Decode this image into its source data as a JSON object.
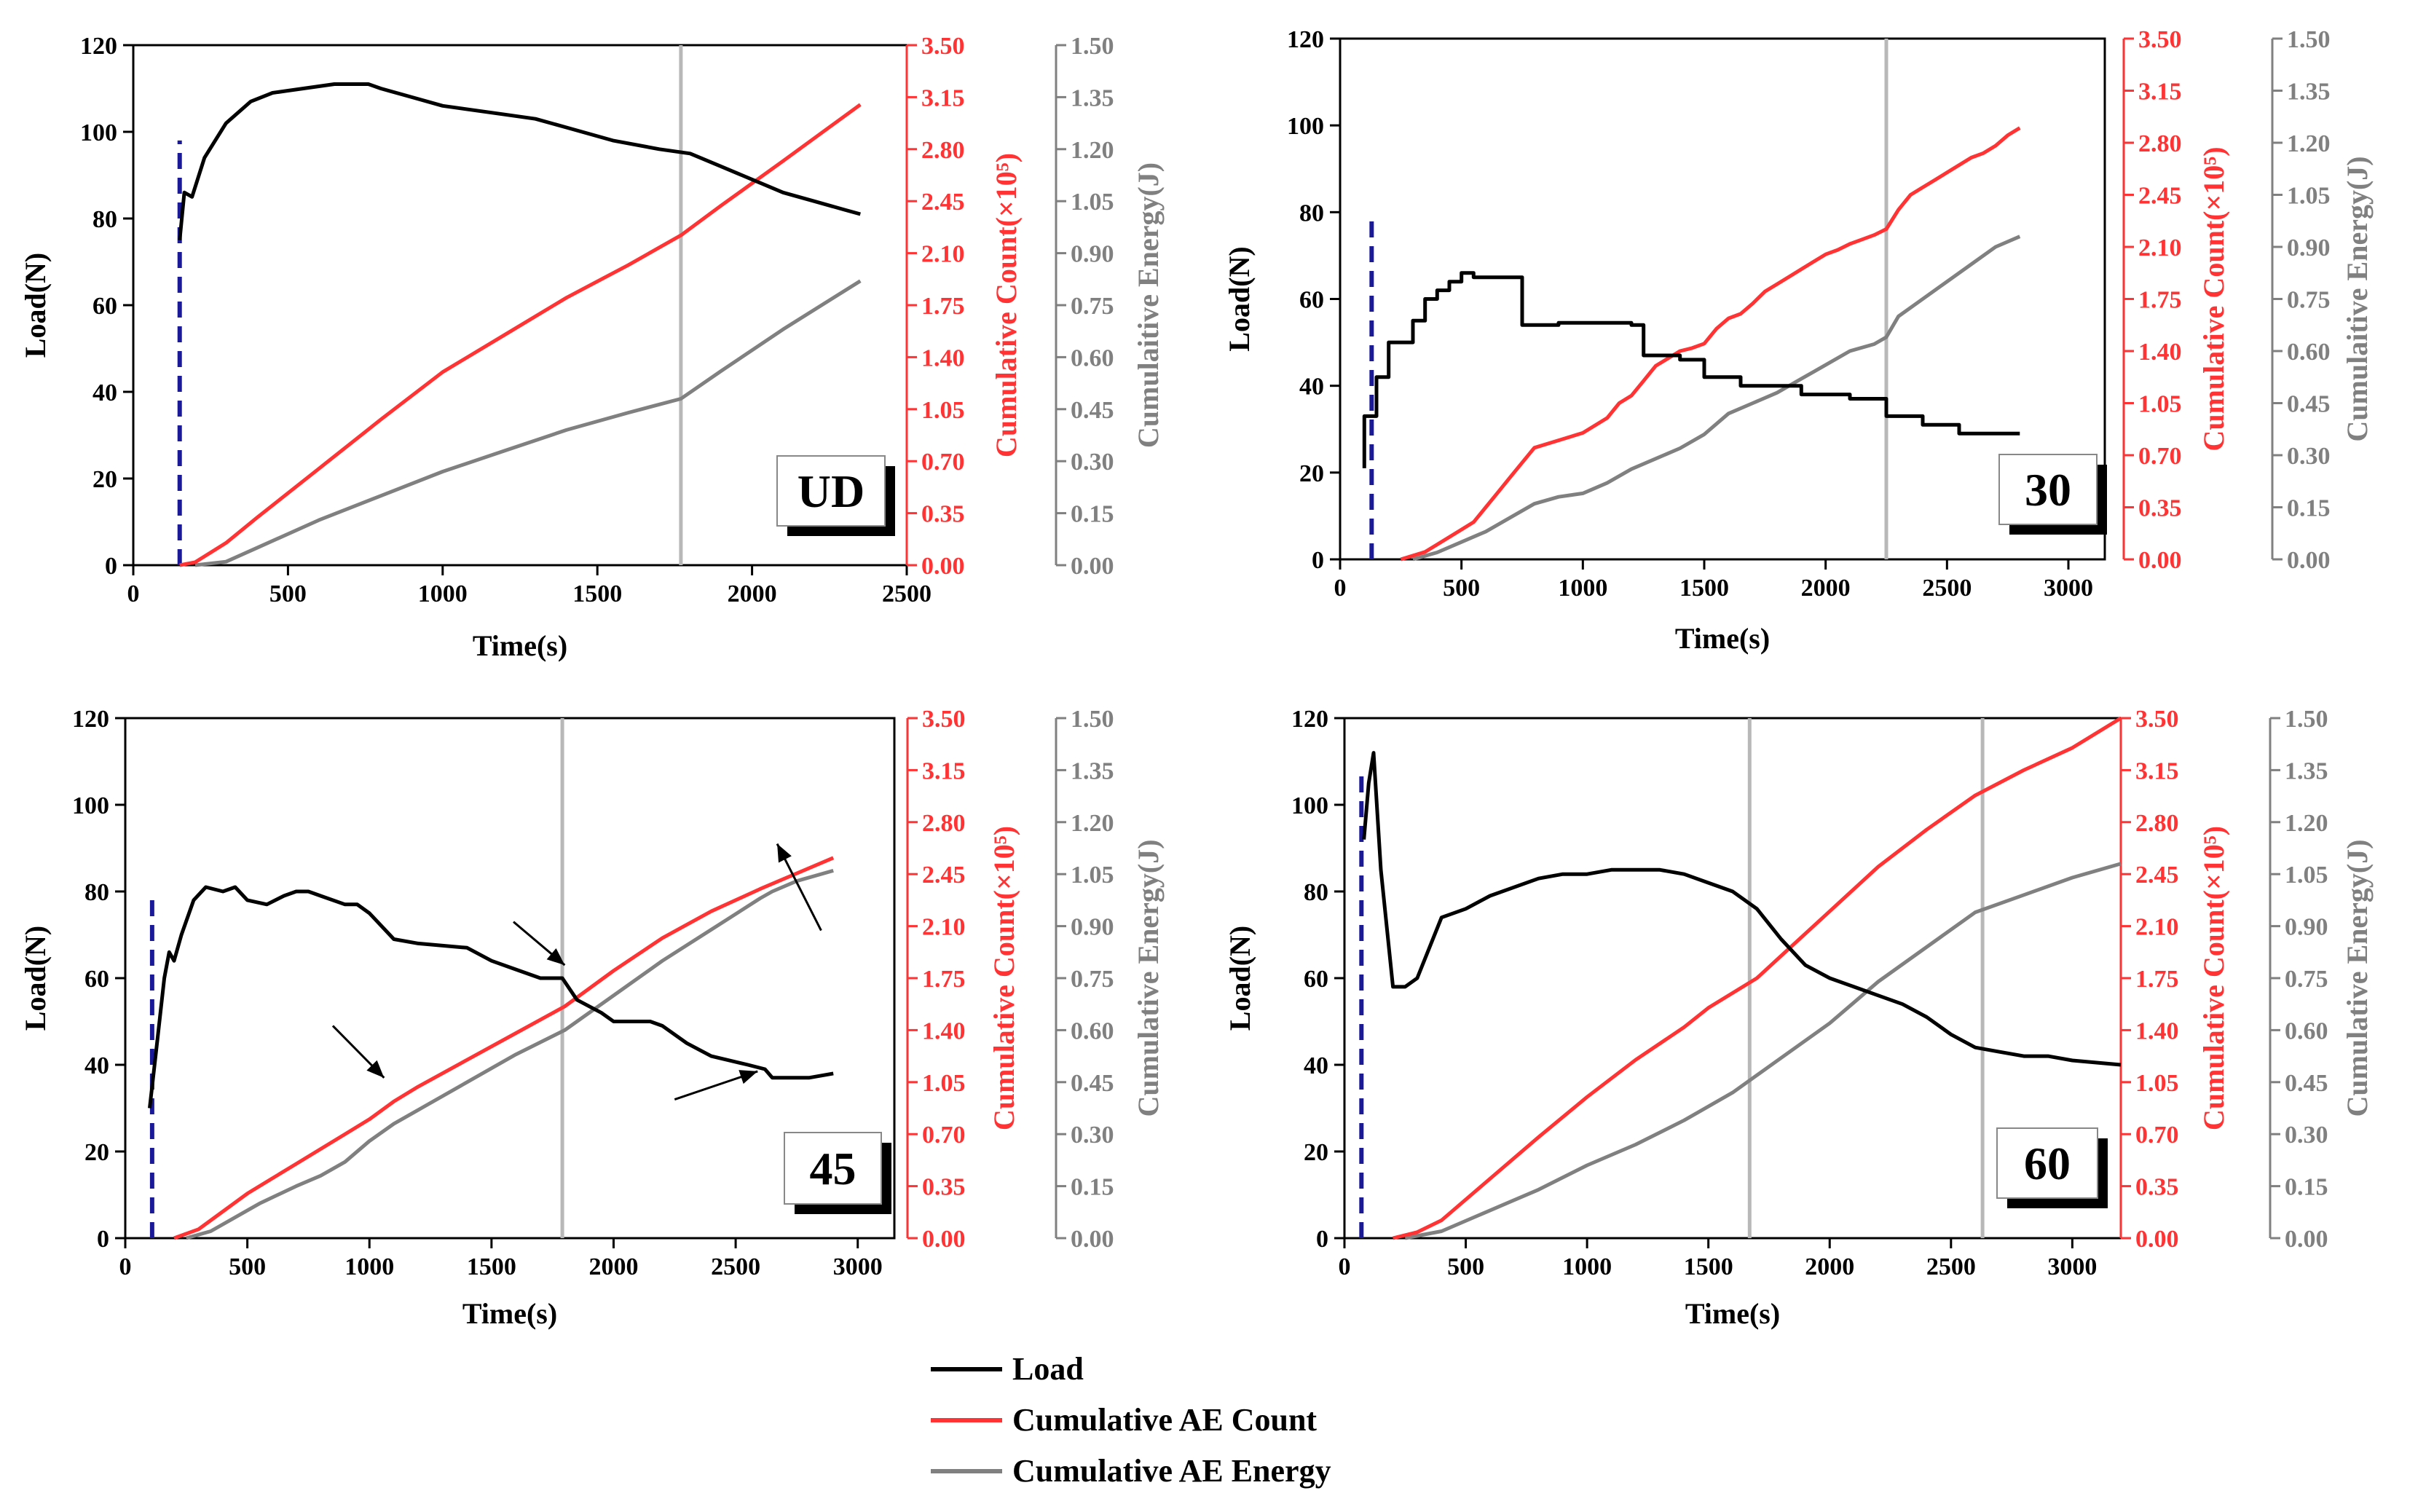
{
  "chart_data": [
    {
      "type": "line",
      "panel_label": "UD",
      "xlabel": "Time(s)",
      "ylabel_left": "Load(N)",
      "ylabel_right1": "Cumulative Count(×10⁵)",
      "ylabel_right2": "Cumulaitive Energy(J)",
      "xlim": [
        0,
        2500
      ],
      "xticks": [
        "0",
        "500",
        "1000",
        "1500",
        "2000",
        "2500"
      ],
      "ylim_left": [
        0,
        120
      ],
      "yticks_left": [
        "0",
        "20",
        "40",
        "60",
        "80",
        "100",
        "120"
      ],
      "ylim_right1": [
        0,
        3.5
      ],
      "yticks_right1": [
        "0.00",
        "0.35",
        "0.70",
        "1.05",
        "1.40",
        "1.75",
        "2.10",
        "2.45",
        "2.80",
        "3.15",
        "3.50"
      ],
      "ylim_right2": [
        0,
        1.5
      ],
      "yticks_right2": [
        "0.00",
        "0.15",
        "0.30",
        "0.45",
        "0.60",
        "0.75",
        "0.90",
        "1.05",
        "1.20",
        "1.35",
        "1.50"
      ],
      "dashed_line_x": 150,
      "dashed_line_top": 98,
      "vertical_lines_x": [
        1770
      ],
      "series": [
        {
          "name": "Load",
          "axis": "left",
          "color": "#000000",
          "x": [
            150,
            165,
            190,
            230,
            300,
            380,
            450,
            550,
            650,
            700,
            760,
            800,
            900,
            1000,
            1200,
            1300,
            1400,
            1550,
            1700,
            1800,
            1900,
            2000,
            2100,
            2200,
            2300,
            2350
          ],
          "y": [
            75,
            86,
            85,
            94,
            102,
            107,
            109,
            110,
            111,
            111,
            111,
            110,
            108,
            106,
            104,
            103,
            101,
            98,
            96,
            95,
            92,
            89,
            86,
            84,
            82,
            81
          ]
        },
        {
          "name": "Cumulative AE Count",
          "axis": "right1",
          "color": "#ff3333",
          "x": [
            150,
            200,
            300,
            400,
            600,
            800,
            1000,
            1200,
            1400,
            1600,
            1770,
            1900,
            2100,
            2350
          ],
          "y": [
            0,
            0.02,
            0.15,
            0.32,
            0.65,
            0.98,
            1.3,
            1.55,
            1.8,
            2.02,
            2.22,
            2.42,
            2.72,
            3.1
          ]
        },
        {
          "name": "Cumulative AE Energy",
          "axis": "right2",
          "color": "#808080",
          "x": [
            200,
            300,
            400,
            600,
            800,
            1000,
            1200,
            1400,
            1600,
            1770,
            1900,
            2100,
            2350
          ],
          "y": [
            0,
            0.01,
            0.05,
            0.13,
            0.2,
            0.27,
            0.33,
            0.39,
            0.44,
            0.48,
            0.56,
            0.68,
            0.82
          ]
        }
      ]
    },
    {
      "type": "line",
      "panel_label": "30",
      "xlabel": "Time(s)",
      "ylabel_left": "Load(N)",
      "ylabel_right1": "Cumulative Count(×10⁵)",
      "ylabel_right2": "Cumulaitive Energy(J)",
      "xlim": [
        0,
        3150
      ],
      "xticks": [
        "0",
        "500",
        "1000",
        "1500",
        "2000",
        "2500",
        "3000"
      ],
      "ylim_left": [
        0,
        120
      ],
      "yticks_left": [
        "0",
        "20",
        "40",
        "60",
        "80",
        "100",
        "120"
      ],
      "ylim_right1": [
        0,
        3.5
      ],
      "yticks_right1": [
        "0.00",
        "0.35",
        "0.70",
        "1.05",
        "1.40",
        "1.75",
        "2.10",
        "2.45",
        "2.80",
        "3.15",
        "3.50"
      ],
      "ylim_right2": [
        0,
        1.5
      ],
      "yticks_right2": [
        "0.00",
        "0.15",
        "0.30",
        "0.45",
        "0.60",
        "0.75",
        "0.90",
        "1.05",
        "1.20",
        "1.35",
        "1.50"
      ],
      "dashed_line_x": 130,
      "dashed_line_top": 78,
      "vertical_lines_x": [
        2250
      ],
      "series": [
        {
          "name": "Load",
          "axis": "left",
          "color": "#000000",
          "x": [
            100,
            100,
            150,
            150,
            200,
            200,
            300,
            300,
            350,
            350,
            400,
            400,
            450,
            450,
            500,
            500,
            550,
            550,
            650,
            650,
            750,
            750,
            900,
            900,
            1200,
            1200,
            1250,
            1250,
            1400,
            1400,
            1500,
            1500,
            1650,
            1650,
            1900,
            1900,
            2100,
            2100,
            2250,
            2250,
            2400,
            2400,
            2550,
            2550,
            2800
          ],
          "y": [
            21,
            33,
            33,
            42,
            42,
            50,
            50,
            55,
            55,
            60,
            60,
            62,
            62,
            64,
            64,
            66,
            66,
            65,
            65,
            65,
            65,
            54,
            54,
            54.5,
            54.5,
            54,
            54,
            47,
            47,
            46,
            46,
            42,
            42,
            40,
            40,
            38,
            38,
            37,
            37,
            33,
            33,
            31,
            31,
            29,
            29
          ]
        },
        {
          "name": "Cumulative AE Count",
          "axis": "right1",
          "color": "#ff3333",
          "x": [
            250,
            350,
            400,
            450,
            500,
            550,
            600,
            650,
            700,
            750,
            800,
            900,
            1000,
            1100,
            1150,
            1200,
            1250,
            1300,
            1350,
            1400,
            1450,
            1500,
            1550,
            1600,
            1650,
            1700,
            1750,
            1800,
            1850,
            1900,
            1950,
            2000,
            2050,
            2100,
            2150,
            2200,
            2250,
            2300,
            2350,
            2400,
            2450,
            2500,
            2550,
            2600,
            2650,
            2700,
            2750,
            2800
          ],
          "y": [
            0,
            0.05,
            0.1,
            0.15,
            0.2,
            0.25,
            0.35,
            0.45,
            0.55,
            0.65,
            0.75,
            0.8,
            0.85,
            0.95,
            1.05,
            1.1,
            1.2,
            1.3,
            1.35,
            1.4,
            1.42,
            1.45,
            1.55,
            1.62,
            1.65,
            1.72,
            1.8,
            1.85,
            1.9,
            1.95,
            2.0,
            2.05,
            2.08,
            2.12,
            2.15,
            2.18,
            2.22,
            2.35,
            2.45,
            2.5,
            2.55,
            2.6,
            2.65,
            2.7,
            2.73,
            2.78,
            2.85,
            2.9
          ]
        },
        {
          "name": "Cumulative AE Energy",
          "axis": "right2",
          "color": "#808080",
          "x": [
            300,
            400,
            500,
            600,
            700,
            800,
            900,
            1000,
            1100,
            1200,
            1300,
            1400,
            1500,
            1600,
            1700,
            1800,
            1900,
            2000,
            2100,
            2200,
            2250,
            2300,
            2400,
            2500,
            2600,
            2700,
            2800
          ],
          "y": [
            0,
            0.02,
            0.05,
            0.08,
            0.12,
            0.16,
            0.18,
            0.19,
            0.22,
            0.26,
            0.29,
            0.32,
            0.36,
            0.42,
            0.45,
            0.48,
            0.52,
            0.56,
            0.6,
            0.62,
            0.64,
            0.7,
            0.75,
            0.8,
            0.85,
            0.9,
            0.93
          ]
        }
      ]
    },
    {
      "type": "line",
      "panel_label": "45",
      "xlabel": "Time(s)",
      "ylabel_left": "Load(N)",
      "ylabel_right1": "Cumulative Count(×10⁵)",
      "ylabel_right2": "Cumulative Energy(J)",
      "xlim": [
        0,
        3150
      ],
      "xticks": [
        "0",
        "500",
        "1000",
        "1500",
        "2000",
        "2500",
        "3000"
      ],
      "ylim_left": [
        0,
        120
      ],
      "yticks_left": [
        "0",
        "20",
        "40",
        "60",
        "80",
        "100",
        "120"
      ],
      "ylim_right1": [
        0,
        3.5
      ],
      "yticks_right1": [
        "0.00",
        "0.35",
        "0.70",
        "1.05",
        "1.40",
        "1.75",
        "2.10",
        "2.45",
        "2.80",
        "3.15",
        "3.50"
      ],
      "ylim_right2": [
        0,
        1.5
      ],
      "yticks_right2": [
        "0.00",
        "0.15",
        "0.30",
        "0.45",
        "0.60",
        "0.75",
        "0.90",
        "1.05",
        "1.20",
        "1.35",
        "1.50"
      ],
      "dashed_line_x": 110,
      "dashed_line_top": 78,
      "vertical_lines_x": [
        1790
      ],
      "series": [
        {
          "name": "Load",
          "axis": "left",
          "color": "#000000",
          "x": [
            100,
            130,
            160,
            180,
            200,
            230,
            280,
            330,
            400,
            450,
            500,
            580,
            650,
            700,
            750,
            800,
            900,
            950,
            1000,
            1100,
            1200,
            1400,
            1500,
            1600,
            1700,
            1790,
            1850,
            1950,
            2000,
            2150,
            2200,
            2300,
            2400,
            2550,
            2620,
            2650,
            2800,
            2900
          ],
          "y": [
            30,
            45,
            60,
            66,
            64,
            70,
            78,
            81,
            80,
            81,
            78,
            77,
            79,
            80,
            80,
            79,
            77,
            77,
            75,
            69,
            68,
            67,
            64,
            62,
            60,
            60,
            55,
            52,
            50,
            50,
            49,
            45,
            42,
            40,
            39,
            37,
            37,
            38
          ]
        },
        {
          "name": "Cumulative AE Count",
          "axis": "right1",
          "color": "#ff3333",
          "x": [
            200,
            300,
            400,
            500,
            600,
            700,
            800,
            900,
            1000,
            1100,
            1200,
            1400,
            1600,
            1800,
            2000,
            2200,
            2400,
            2600,
            2900
          ],
          "y": [
            0,
            0.06,
            0.18,
            0.3,
            0.4,
            0.5,
            0.6,
            0.7,
            0.8,
            0.92,
            1.02,
            1.2,
            1.38,
            1.56,
            1.8,
            2.02,
            2.2,
            2.35,
            2.56
          ]
        },
        {
          "name": "Cumulative AE Energy",
          "axis": "right2",
          "color": "#808080",
          "x": [
            250,
            350,
            450,
            550,
            700,
            800,
            900,
            1000,
            1100,
            1200,
            1400,
            1600,
            1800,
            2000,
            2200,
            2400,
            2600,
            2650,
            2750,
            2900
          ],
          "y": [
            0,
            0.02,
            0.06,
            0.1,
            0.15,
            0.18,
            0.22,
            0.28,
            0.33,
            0.37,
            0.45,
            0.53,
            0.6,
            0.7,
            0.8,
            0.89,
            0.98,
            1.0,
            1.03,
            1.06
          ]
        }
      ]
    },
    {
      "type": "line",
      "panel_label": "60",
      "xlabel": "Time(s)",
      "ylabel_left": "Load(N)",
      "ylabel_right1": "Cumulative Count(×10⁵)",
      "ylabel_right2": "Cumulative Energy(J)",
      "xlim": [
        0,
        3200
      ],
      "xticks": [
        "0",
        "500",
        "1000",
        "1500",
        "2000",
        "2500",
        "3000"
      ],
      "ylim_left": [
        0,
        120
      ],
      "yticks_left": [
        "0",
        "20",
        "40",
        "60",
        "80",
        "100",
        "120"
      ],
      "ylim_right1": [
        0,
        3.5
      ],
      "yticks_right1": [
        "0.00",
        "0.35",
        "0.70",
        "1.05",
        "1.40",
        "1.75",
        "2.10",
        "2.45",
        "2.80",
        "3.15",
        "3.50"
      ],
      "ylim_right2": [
        0,
        1.5
      ],
      "yticks_right2": [
        "0.00",
        "0.15",
        "0.30",
        "0.45",
        "0.60",
        "0.75",
        "0.90",
        "1.05",
        "1.20",
        "1.35",
        "1.50"
      ],
      "dashed_line_x": 70,
      "dashed_line_top": 108,
      "vertical_lines_x": [
        1670,
        2630
      ],
      "series": [
        {
          "name": "Load",
          "axis": "left",
          "color": "#000000",
          "x": [
            80,
            100,
            120,
            150,
            200,
            250,
            300,
            400,
            500,
            600,
            800,
            900,
            1000,
            1100,
            1200,
            1300,
            1400,
            1500,
            1600,
            1700,
            1800,
            1900,
            2000,
            2100,
            2200,
            2300,
            2400,
            2500,
            2600,
            2700,
            2800,
            2900,
            3000,
            3200
          ],
          "y": [
            92,
            105,
            112,
            85,
            58,
            58,
            60,
            74,
            76,
            79,
            83,
            84,
            84,
            85,
            85,
            85,
            84,
            82,
            80,
            76,
            69,
            63,
            60,
            58,
            56,
            54,
            51,
            47,
            44,
            43,
            42,
            42,
            41,
            40
          ]
        },
        {
          "name": "Cumulative AE Count",
          "axis": "right1",
          "color": "#ff3333",
          "x": [
            200,
            300,
            400,
            600,
            800,
            1000,
            1200,
            1400,
            1500,
            1600,
            1700,
            1800,
            2000,
            2200,
            2400,
            2600,
            2800,
            3000,
            3200
          ],
          "y": [
            0,
            0.04,
            0.12,
            0.4,
            0.68,
            0.95,
            1.2,
            1.42,
            1.55,
            1.65,
            1.75,
            1.9,
            2.2,
            2.5,
            2.75,
            2.98,
            3.15,
            3.3,
            3.5
          ]
        },
        {
          "name": "Cumulative AE Energy",
          "axis": "right2",
          "color": "#808080",
          "x": [
            250,
            400,
            600,
            800,
            1000,
            1200,
            1400,
            1600,
            1800,
            2000,
            2200,
            2400,
            2600,
            2800,
            3000,
            3200
          ],
          "y": [
            0,
            0.02,
            0.08,
            0.14,
            0.21,
            0.27,
            0.34,
            0.42,
            0.52,
            0.62,
            0.74,
            0.84,
            0.94,
            0.99,
            1.04,
            1.08
          ]
        }
      ]
    }
  ],
  "legend": {
    "position": "bottom-center",
    "items": [
      {
        "label": "Load",
        "color": "#000000"
      },
      {
        "label": "Cumulative AE Count",
        "color": "#ff3333"
      },
      {
        "label": "Cumulative AE Energy",
        "color": "#808080"
      }
    ]
  },
  "colors": {
    "dashed_line": "#1a1a99",
    "vertical_line": "#b8b8b8",
    "count_axis": "#ff3333",
    "energy_axis": "#808080"
  }
}
